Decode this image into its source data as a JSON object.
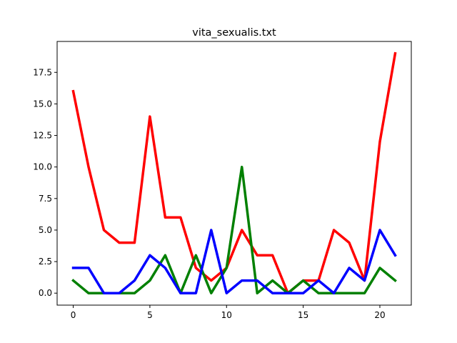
{
  "chart_data": {
    "type": "line",
    "title": "vita_sexualis.txt",
    "xlabel": "",
    "ylabel": "",
    "xlim": [
      -1.05,
      22.05
    ],
    "ylim": [
      -0.95,
      19.95
    ],
    "x_ticks": [
      0,
      5,
      10,
      15,
      20
    ],
    "y_ticks": [
      0.0,
      2.5,
      5.0,
      7.5,
      10.0,
      12.5,
      15.0,
      17.5
    ],
    "y_tick_labels": [
      "0.0",
      "2.5",
      "5.0",
      "7.5",
      "10.0",
      "12.5",
      "15.0",
      "17.5"
    ],
    "grid": false,
    "x": [
      0,
      1,
      2,
      3,
      4,
      5,
      6,
      7,
      8,
      9,
      10,
      11,
      12,
      13,
      14,
      15,
      16,
      17,
      18,
      19,
      20,
      21
    ],
    "series": [
      {
        "color": "#ff0000",
        "values": [
          16,
          10,
          5,
          4,
          4,
          14,
          6,
          6,
          2,
          1,
          2,
          5,
          3,
          3,
          0,
          1,
          1,
          5,
          4,
          1,
          12,
          19
        ]
      },
      {
        "color": "#008000",
        "values": [
          1,
          0,
          0,
          0,
          0,
          1,
          3,
          0,
          3,
          0,
          2,
          10,
          0,
          1,
          0,
          1,
          0,
          0,
          0,
          0,
          2,
          1
        ]
      },
      {
        "color": "#0000ff",
        "values": [
          2,
          2,
          0,
          0,
          1,
          3,
          2,
          0,
          0,
          5,
          0,
          1,
          1,
          0,
          0,
          0,
          1,
          0,
          2,
          1,
          5,
          3
        ]
      }
    ]
  }
}
